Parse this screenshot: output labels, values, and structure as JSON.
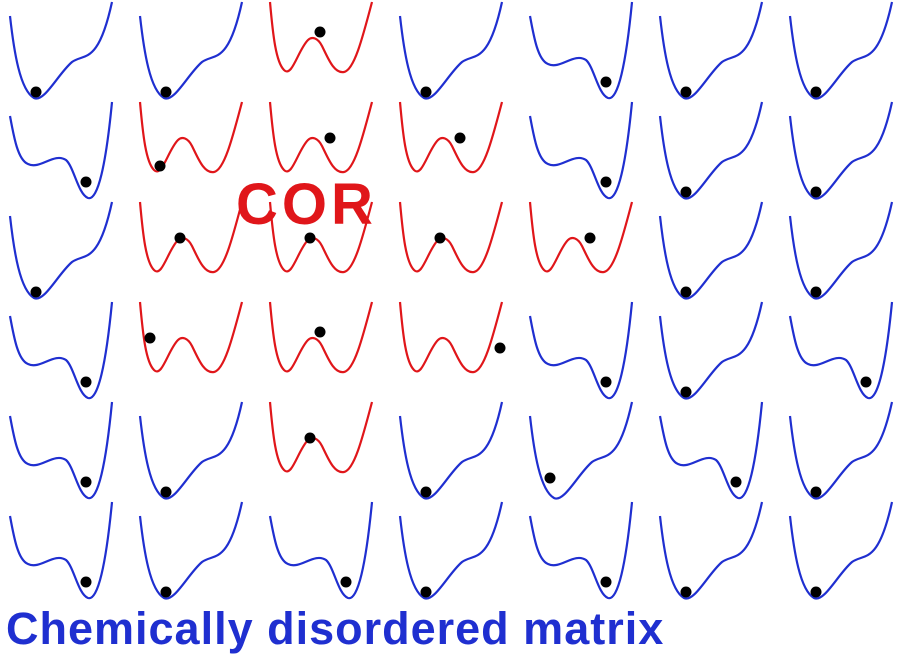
{
  "colors": {
    "matrix": "#1f2fd0",
    "cor": "#e0161a",
    "particle": "#000000",
    "background": "#ffffff"
  },
  "cor_label": "COR",
  "caption": "Chemically disordered matrix",
  "grid": {
    "rows": [
      [
        {
          "type": "left-deep",
          "particle": "left-min",
          "region": "matrix"
        },
        {
          "type": "left-deep",
          "particle": "left-min",
          "region": "matrix"
        },
        {
          "type": "double-well",
          "particle": "barrier-top",
          "region": "cor"
        },
        {
          "type": "left-deep",
          "particle": "left-min",
          "region": "matrix"
        },
        {
          "type": "right-deep",
          "particle": "right-min",
          "region": "matrix"
        },
        {
          "type": "left-deep",
          "particle": "left-min",
          "region": "matrix"
        },
        {
          "type": "left-deep",
          "particle": "left-min",
          "region": "matrix"
        }
      ],
      [
        {
          "type": "right-deep",
          "particle": "right-min",
          "region": "matrix"
        },
        {
          "type": "double-well",
          "particle": "left-min",
          "region": "cor"
        },
        {
          "type": "double-well",
          "particle": "barrier-right",
          "region": "cor"
        },
        {
          "type": "double-well",
          "particle": "barrier-right",
          "region": "cor"
        },
        {
          "type": "right-deep",
          "particle": "right-min",
          "region": "matrix"
        },
        {
          "type": "left-deep",
          "particle": "left-min",
          "region": "matrix"
        },
        {
          "type": "left-deep",
          "particle": "left-min",
          "region": "matrix"
        }
      ],
      [
        {
          "type": "left-deep",
          "particle": "left-min",
          "region": "matrix"
        },
        {
          "type": "double-well",
          "particle": "barrier-left",
          "region": "cor"
        },
        {
          "type": "double-well",
          "particle": "barrier-left",
          "region": "cor"
        },
        {
          "type": "double-well",
          "particle": "barrier-left",
          "region": "cor"
        },
        {
          "type": "double-well",
          "particle": "barrier-right",
          "region": "cor"
        },
        {
          "type": "left-deep",
          "particle": "left-min",
          "region": "matrix"
        },
        {
          "type": "left-deep",
          "particle": "left-min",
          "region": "matrix"
        }
      ],
      [
        {
          "type": "right-deep",
          "particle": "right-min",
          "region": "matrix"
        },
        {
          "type": "double-well",
          "particle": "left-wall",
          "region": "cor"
        },
        {
          "type": "double-well",
          "particle": "barrier-top",
          "region": "cor"
        },
        {
          "type": "double-well",
          "particle": "right-wall",
          "region": "cor"
        },
        {
          "type": "right-deep",
          "particle": "right-min",
          "region": "matrix"
        },
        {
          "type": "left-deep",
          "particle": "left-min",
          "region": "matrix"
        },
        {
          "type": "right-deep",
          "particle": "right-min",
          "region": "matrix"
        }
      ],
      [
        {
          "type": "right-deep",
          "particle": "right-min",
          "region": "matrix"
        },
        {
          "type": "left-deep",
          "particle": "left-min",
          "region": "matrix"
        },
        {
          "type": "double-well",
          "particle": "barrier-left",
          "region": "cor"
        },
        {
          "type": "left-deep",
          "particle": "left-min",
          "region": "matrix"
        },
        {
          "type": "left-deep",
          "particle": "left-wall",
          "region": "matrix"
        },
        {
          "type": "right-deep",
          "particle": "right-min",
          "region": "matrix"
        },
        {
          "type": "left-deep",
          "particle": "left-min",
          "region": "matrix"
        }
      ],
      [
        {
          "type": "right-deep",
          "particle": "right-min",
          "region": "matrix"
        },
        {
          "type": "left-deep",
          "particle": "left-min",
          "region": "matrix"
        },
        {
          "type": "right-deep",
          "particle": "right-min",
          "region": "matrix"
        },
        {
          "type": "left-deep",
          "particle": "left-min",
          "region": "matrix"
        },
        {
          "type": "right-deep",
          "particle": "right-min",
          "region": "matrix"
        },
        {
          "type": "left-deep",
          "particle": "left-min",
          "region": "matrix"
        },
        {
          "type": "left-deep",
          "particle": "left-min",
          "region": "matrix"
        }
      ]
    ]
  }
}
